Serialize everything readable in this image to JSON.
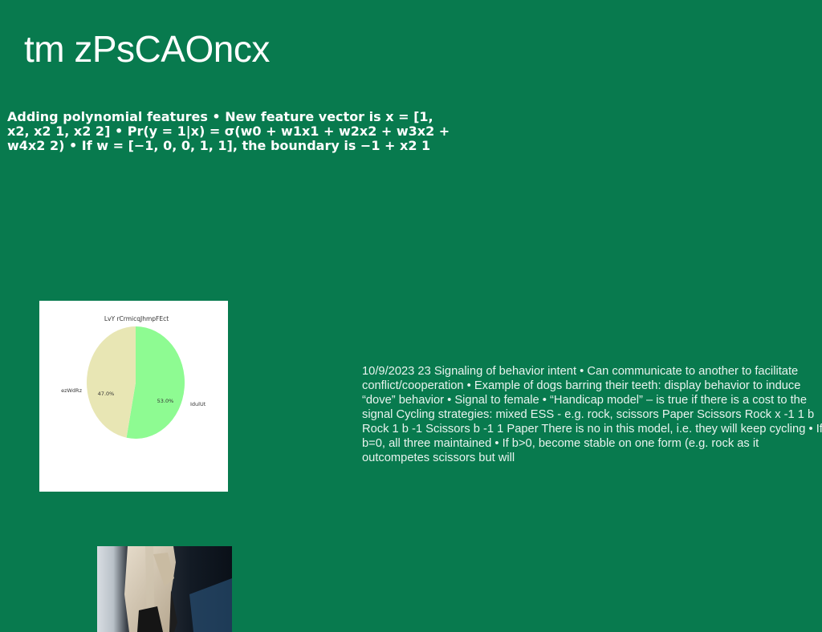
{
  "slide": {
    "title": "tm zPsCAOncx",
    "bold_text": "Adding polynomial features • New feature vector is x = [1, x2, x2 1, x2 2] • Pr(y = 1|x) = σ(w0 + w1x1 + w2x2 + w3x2 + w4x2 2) • If w = [−1, 0, 0, 1, 1], the boundary is −1 + x2 1",
    "body_text": "10/9/2023 23 Signaling of behavior intent • Can communicate to another to facilitate conflict/cooperation • Example of dogs barring their teeth: display behavior to induce “dove” behavior • Signal to female • “Handicap model” – is true if there is a cost to the signal Cycling strategies: mixed ESS - e.g. rock, scissors Paper Scissors Rock x -1 1 b Rock 1 b -1 Scissors b -1 1 Paper There is no in this model, i.e. they will keep cycling • If b=0, all three maintained • If b>0, become stable on one form (e.g. rock as it outcompetes scissors but will"
  },
  "chart_data": {
    "type": "pie",
    "title": "LvY rCrmicqJhmpFEct",
    "slices": [
      {
        "label": "IdulUt",
        "value": 53.0,
        "pct_label": "53.0%",
        "color": "#8efb92"
      },
      {
        "label": "ezWdRz",
        "value": 47.0,
        "pct_label": "47.0%",
        "color": "#e8e6b4"
      }
    ]
  }
}
